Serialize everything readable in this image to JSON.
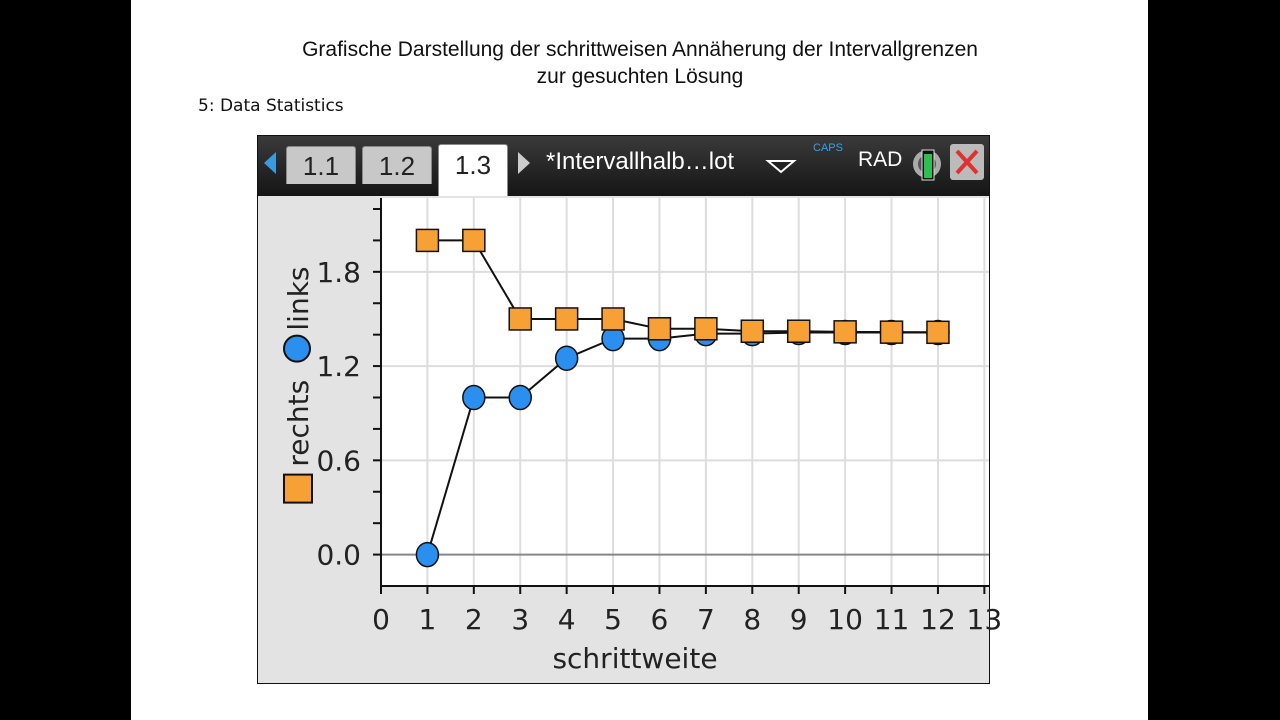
{
  "slide": {
    "title_line1": "Grafische Darstellung der schrittweisen Annäherung der Intervallgrenzen",
    "title_line2": "zur gesuchten Lösung",
    "subtitle": "5: Data Statistics"
  },
  "toolbar": {
    "tabs": [
      "1.1",
      "1.2",
      "1.3"
    ],
    "active_tab": "1.3",
    "doc_title": "*Intervallhalb…lot",
    "caps": "CAPS",
    "angle_mode": "RAD"
  },
  "colors": {
    "rechts": "#f7a035",
    "links": "#2b8ff0"
  },
  "chart_data": {
    "type": "scatter",
    "xlabel": "schrittweite",
    "ylabel_series": [
      "rechts",
      "links"
    ],
    "xlim": [
      0,
      13.1
    ],
    "ylim": [
      -0.2,
      2.27
    ],
    "xticks": [
      0,
      1,
      2,
      3,
      4,
      5,
      6,
      7,
      8,
      9,
      10,
      11,
      12,
      13
    ],
    "yticks": [
      "0.0",
      "0.6",
      "1.2",
      "1.8"
    ],
    "grid": true,
    "x": [
      1,
      2,
      3,
      4,
      5,
      6,
      7,
      8,
      9,
      10,
      11,
      12
    ],
    "series": [
      {
        "name": "rechts",
        "marker": "square",
        "values": [
          2,
          2,
          1.5,
          1.5,
          1.5,
          1.4375,
          1.4375,
          1.421875,
          1.421875,
          1.41796875,
          1.416015625,
          1.4150390625
        ]
      },
      {
        "name": "links",
        "marker": "circle",
        "values": [
          0,
          1,
          1,
          1.25,
          1.375,
          1.375,
          1.40625,
          1.40625,
          1.4140625,
          1.4140625,
          1.4140625,
          1.4140625
        ]
      }
    ]
  }
}
